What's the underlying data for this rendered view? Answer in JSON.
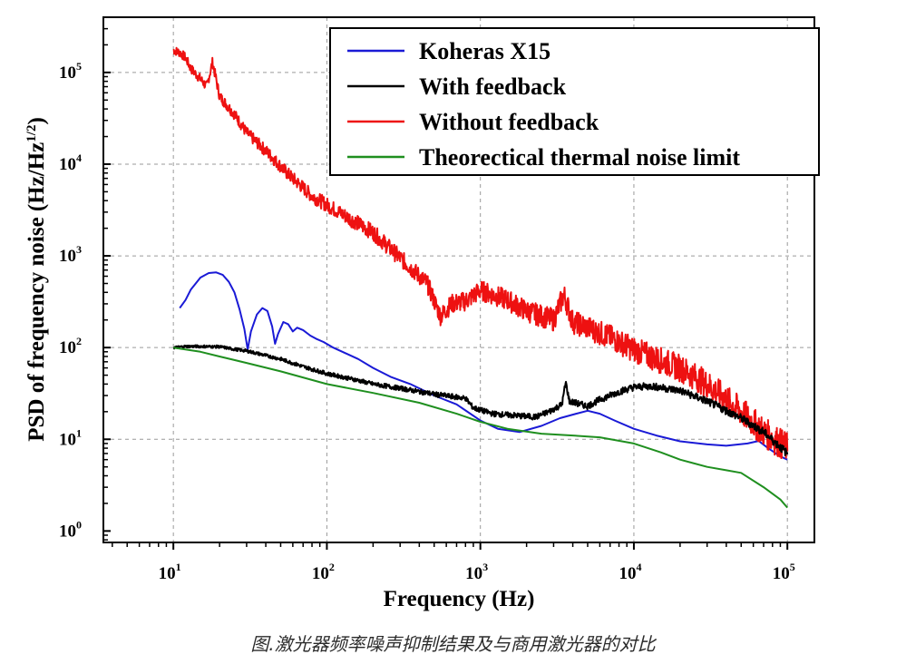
{
  "caption": "图.激光器频率噪声抑制结果及与商用激光器的对比",
  "chart_data": {
    "type": "line",
    "xlabel": "Frequency (Hz)",
    "ylabel_main": "PSD of frequency noise (Hz/Hz",
    "ylabel_sup": "1/2",
    "ylabel_end": ")",
    "x_scale": "log",
    "y_scale": "log",
    "xlim": [
      3.5,
      150000
    ],
    "ylim": [
      0.75,
      400000
    ],
    "grid": true,
    "legend_position": "top-right",
    "x_ticks": [
      {
        "base": "10",
        "exp": "1"
      },
      {
        "base": "10",
        "exp": "2"
      },
      {
        "base": "10",
        "exp": "3"
      },
      {
        "base": "10",
        "exp": "4"
      },
      {
        "base": "10",
        "exp": "5"
      }
    ],
    "y_ticks": [
      {
        "base": "10",
        "exp": "0"
      },
      {
        "base": "10",
        "exp": "1"
      },
      {
        "base": "10",
        "exp": "2"
      },
      {
        "base": "10",
        "exp": "3"
      },
      {
        "base": "10",
        "exp": "4"
      },
      {
        "base": "10",
        "exp": "5"
      }
    ],
    "series": [
      {
        "name": "Koheras X15",
        "color": "#1a1ad6",
        "points": [
          [
            11,
            270
          ],
          [
            12,
            330
          ],
          [
            13,
            430
          ],
          [
            15,
            580
          ],
          [
            17,
            650
          ],
          [
            19,
            660
          ],
          [
            21,
            620
          ],
          [
            23,
            520
          ],
          [
            25,
            400
          ],
          [
            27,
            260
          ],
          [
            29,
            160
          ],
          [
            30.5,
            95
          ],
          [
            32,
            150
          ],
          [
            35,
            230
          ],
          [
            38,
            270
          ],
          [
            41,
            250
          ],
          [
            44,
            170
          ],
          [
            46,
            110
          ],
          [
            48,
            140
          ],
          [
            52,
            190
          ],
          [
            56,
            180
          ],
          [
            60,
            150
          ],
          [
            64,
            165
          ],
          [
            70,
            155
          ],
          [
            78,
            135
          ],
          [
            85,
            125
          ],
          [
            95,
            115
          ],
          [
            110,
            100
          ],
          [
            130,
            88
          ],
          [
            160,
            75
          ],
          [
            200,
            60
          ],
          [
            260,
            48
          ],
          [
            350,
            40
          ],
          [
            500,
            30
          ],
          [
            700,
            24
          ],
          [
            1000,
            16
          ],
          [
            1300,
            13
          ],
          [
            1800,
            12
          ],
          [
            2500,
            14
          ],
          [
            3300,
            17
          ],
          [
            4200,
            19
          ],
          [
            5000,
            20.5
          ],
          [
            6000,
            19
          ],
          [
            7500,
            16
          ],
          [
            10000,
            13
          ],
          [
            14000,
            11
          ],
          [
            20000,
            9.5
          ],
          [
            30000,
            8.8
          ],
          [
            40000,
            8.5
          ],
          [
            55000,
            9
          ],
          [
            65000,
            9.6
          ],
          [
            75000,
            8
          ],
          [
            90000,
            6.5
          ],
          [
            100000,
            6
          ]
        ]
      },
      {
        "name": "With feedback",
        "color": "#000000",
        "noise": 0.06,
        "points": [
          [
            10,
            100
          ],
          [
            12,
            103
          ],
          [
            15,
            103
          ],
          [
            20,
            102
          ],
          [
            25,
            96
          ],
          [
            30,
            92
          ],
          [
            40,
            82
          ],
          [
            50,
            75
          ],
          [
            70,
            62
          ],
          [
            100,
            52
          ],
          [
            150,
            45
          ],
          [
            200,
            40
          ],
          [
            300,
            36
          ],
          [
            500,
            31
          ],
          [
            800,
            28
          ],
          [
            900,
            22
          ],
          [
            1200,
            19
          ],
          [
            1800,
            18
          ],
          [
            2300,
            17.5
          ],
          [
            2800,
            20
          ],
          [
            3400,
            24
          ],
          [
            3600,
            42
          ],
          [
            3800,
            26
          ],
          [
            4500,
            24
          ],
          [
            5000,
            23
          ],
          [
            6000,
            27
          ],
          [
            8000,
            33
          ],
          [
            10000,
            37
          ],
          [
            13000,
            38
          ],
          [
            16000,
            36
          ],
          [
            20000,
            34
          ],
          [
            30000,
            26
          ],
          [
            50000,
            17
          ],
          [
            70000,
            12
          ],
          [
            100000,
            7
          ]
        ]
      },
      {
        "name": "Without feedback",
        "color": "#ee1111",
        "noise": 0.22,
        "points": [
          [
            10,
            175000
          ],
          [
            11,
            165000
          ],
          [
            12,
            145000
          ],
          [
            13,
            110000
          ],
          [
            15,
            85000
          ],
          [
            16.5,
            70000
          ],
          [
            18,
            130000
          ],
          [
            20,
            55000
          ],
          [
            25,
            35000
          ],
          [
            30,
            22000
          ],
          [
            40,
            14000
          ],
          [
            55,
            8000
          ],
          [
            80,
            4500
          ],
          [
            120,
            3000
          ],
          [
            200,
            1800
          ],
          [
            300,
            950
          ],
          [
            450,
            500
          ],
          [
            550,
            220
          ],
          [
            650,
            300
          ],
          [
            800,
            320
          ],
          [
            1000,
            420
          ],
          [
            1500,
            330
          ],
          [
            2000,
            250
          ],
          [
            3000,
            200
          ],
          [
            3500,
            380
          ],
          [
            4000,
            190
          ],
          [
            5000,
            165
          ],
          [
            7000,
            130
          ],
          [
            10000,
            95
          ],
          [
            15000,
            72
          ],
          [
            20000,
            60
          ],
          [
            30000,
            40
          ],
          [
            50000,
            20
          ],
          [
            70000,
            12
          ],
          [
            100000,
            8
          ]
        ]
      },
      {
        "name": "Theorectical thermal noise limit",
        "color": "#1f8f1f",
        "points": [
          [
            10,
            100
          ],
          [
            15,
            90
          ],
          [
            20,
            80
          ],
          [
            30,
            68
          ],
          [
            50,
            55
          ],
          [
            100,
            40
          ],
          [
            200,
            32
          ],
          [
            400,
            25
          ],
          [
            700,
            19
          ],
          [
            1000,
            15.5
          ],
          [
            1500,
            13
          ],
          [
            2500,
            11.5
          ],
          [
            4000,
            11
          ],
          [
            6000,
            10.5
          ],
          [
            10000,
            9
          ],
          [
            15000,
            7.2
          ],
          [
            20000,
            6
          ],
          [
            30000,
            5
          ],
          [
            40000,
            4.6
          ],
          [
            50000,
            4.3
          ],
          [
            70000,
            3
          ],
          [
            90000,
            2.2
          ],
          [
            100000,
            1.8
          ]
        ]
      }
    ]
  }
}
